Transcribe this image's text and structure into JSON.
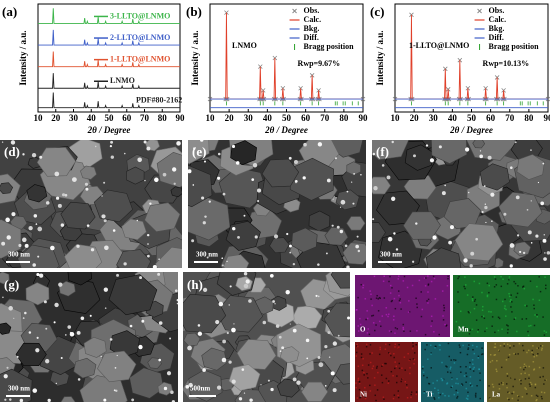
{
  "chart_data": [
    {
      "type": "line",
      "panel_label": "(a)",
      "xlabel": "2θ / Degree",
      "ylabel": "Intensity / a.u.",
      "x": [
        10,
        18.2,
        18.6,
        19,
        35.9,
        36.3,
        36.7,
        37.4,
        37.8,
        38.2,
        43.5,
        43.9,
        44.3,
        47.7,
        48.1,
        48.5,
        57,
        57.4,
        57.8,
        63,
        63.4,
        63.8,
        66.4,
        66.8,
        67.2,
        90
      ],
      "xlim": [
        10,
        90
      ],
      "xticks": [
        10,
        20,
        30,
        40,
        50,
        60,
        70,
        80,
        90
      ],
      "ylim": [
        0,
        100
      ],
      "legend": "inline",
      "series": [
        {
          "name": "3-LLTO@LNMO",
          "color": "#3cb54a",
          "values": [
            82,
            82,
            96,
            82,
            82,
            87,
            82,
            82,
            84,
            82,
            82,
            88,
            82,
            82,
            84,
            82,
            82,
            84,
            82,
            82,
            86,
            82,
            82,
            84,
            82,
            82
          ]
        },
        {
          "name": "2-LLTO@LNMO",
          "color": "#3f5fc8",
          "values": [
            62,
            62,
            76,
            62,
            62,
            67,
            62,
            62,
            64,
            62,
            62,
            68,
            62,
            62,
            64,
            62,
            62,
            64,
            62,
            62,
            66,
            62,
            62,
            64,
            62,
            62
          ]
        },
        {
          "name": "1-LLTO@LNMO",
          "color": "#e0522f",
          "values": [
            42,
            42,
            56,
            42,
            42,
            47,
            42,
            42,
            44,
            42,
            42,
            48,
            42,
            42,
            44,
            42,
            42,
            44,
            42,
            42,
            46,
            42,
            42,
            44,
            42,
            42
          ]
        },
        {
          "name": "LNMO",
          "color": "#222222",
          "values": [
            22,
            22,
            36,
            22,
            22,
            27,
            22,
            22,
            24,
            22,
            22,
            28,
            22,
            22,
            24,
            22,
            22,
            24,
            22,
            22,
            26,
            22,
            22,
            24,
            22,
            22
          ]
        },
        {
          "name": "PDF#80-2162",
          "color": "#222222",
          "values": [
            4,
            4,
            18,
            4,
            4,
            9,
            4,
            4,
            6,
            4,
            4,
            10,
            4,
            4,
            6,
            4,
            4,
            6,
            4,
            4,
            8,
            4,
            4,
            6,
            4,
            4
          ]
        }
      ]
    },
    {
      "type": "line",
      "panel_label": "(b)",
      "xlabel": "2θ / Degree",
      "ylabel": "Intensity / a.u.",
      "annotation": "LNMO",
      "rwp": "Rwp=9.67%",
      "x": [
        10,
        18.2,
        18.6,
        19,
        35.9,
        36.3,
        36.7,
        37.4,
        37.8,
        38.2,
        43.5,
        43.9,
        44.3,
        47.7,
        48.1,
        48.5,
        57,
        57.4,
        57.8,
        63,
        63.4,
        63.8,
        66.4,
        66.8,
        67.2,
        90
      ],
      "xlim": [
        10,
        90
      ],
      "xticks": [
        10,
        20,
        30,
        40,
        50,
        60,
        70,
        80,
        90
      ],
      "ylim": [
        0,
        100
      ],
      "legend": "upper right",
      "series": [
        {
          "name": "Obs.",
          "color": "#888888",
          "marker": "x",
          "values": [
            12,
            12,
            92,
            12,
            12,
            42,
            12,
            12,
            20,
            12,
            12,
            50,
            12,
            12,
            22,
            12,
            12,
            22,
            12,
            12,
            34,
            12,
            12,
            20,
            12,
            12
          ]
        },
        {
          "name": "Calc.",
          "color": "#e0402a",
          "values": [
            12,
            12,
            92,
            12,
            12,
            42,
            12,
            12,
            20,
            12,
            12,
            50,
            12,
            12,
            22,
            12,
            12,
            22,
            12,
            12,
            34,
            12,
            12,
            20,
            12,
            12
          ]
        },
        {
          "name": "Bkg.",
          "color": "#3f5fc8",
          "values": [
            12,
            12,
            12,
            12,
            12,
            12,
            12,
            12,
            12,
            12,
            12,
            12,
            12,
            12,
            12,
            12,
            12,
            12,
            12,
            12,
            12,
            12,
            12,
            12,
            12,
            12
          ]
        },
        {
          "name": "Diff.",
          "color": "#3f5fc8",
          "values": [
            4,
            4,
            4,
            4,
            4,
            4,
            4,
            4,
            4,
            4,
            4,
            4,
            4,
            4,
            4,
            4,
            4,
            4,
            4,
            4,
            4,
            4,
            4,
            4,
            4,
            4
          ]
        }
      ],
      "bragg": {
        "name": "Bragg position",
        "color": "#2ca02c",
        "positions": [
          18.6,
          36.3,
          37.8,
          43.9,
          48.1,
          57.4,
          63.4,
          66.8,
          75.5,
          76.5,
          79.6,
          80.7,
          84.4,
          87.5
        ]
      }
    },
    {
      "type": "line",
      "panel_label": "(c)",
      "xlabel": "2θ / Degree",
      "ylabel": "Intensity / a.u.",
      "annotation": "1-LLTO@LNMO",
      "rwp": "Rwp=10.13%",
      "x": [
        10,
        18.2,
        18.6,
        19,
        35.9,
        36.3,
        36.7,
        37.4,
        37.8,
        38.2,
        43.5,
        43.9,
        44.3,
        47.7,
        48.1,
        48.5,
        57,
        57.4,
        57.8,
        63,
        63.4,
        63.8,
        66.4,
        66.8,
        67.2,
        90
      ],
      "xlim": [
        10,
        90
      ],
      "xticks": [
        10,
        20,
        30,
        40,
        50,
        60,
        70,
        80,
        90
      ],
      "ylim": [
        0,
        100
      ],
      "legend": "upper right",
      "series": [
        {
          "name": "Obs.",
          "color": "#888888",
          "marker": "x",
          "values": [
            12,
            12,
            90,
            12,
            12,
            40,
            12,
            12,
            21,
            12,
            12,
            48,
            12,
            12,
            22,
            12,
            12,
            22,
            12,
            12,
            32,
            12,
            12,
            20,
            12,
            12
          ]
        },
        {
          "name": "Calc.",
          "color": "#e0402a",
          "values": [
            12,
            12,
            90,
            12,
            12,
            40,
            12,
            12,
            21,
            12,
            12,
            48,
            12,
            12,
            22,
            12,
            12,
            22,
            12,
            12,
            32,
            12,
            12,
            20,
            12,
            12
          ]
        },
        {
          "name": "Bkg.",
          "color": "#3f5fc8",
          "values": [
            12,
            12,
            12,
            12,
            12,
            12,
            12,
            12,
            12,
            12,
            12,
            12,
            12,
            12,
            12,
            12,
            12,
            12,
            12,
            12,
            12,
            12,
            12,
            12,
            12,
            12
          ]
        },
        {
          "name": "Diff.",
          "color": "#3f5fc8",
          "values": [
            4,
            4,
            4,
            4,
            4,
            4,
            4,
            4,
            4,
            4,
            4,
            4,
            4,
            4,
            4,
            4,
            4,
            4,
            4,
            4,
            4,
            4,
            4,
            4,
            4,
            4
          ]
        }
      ],
      "bragg": {
        "name": "Bragg position",
        "color": "#2ca02c",
        "positions": [
          18.6,
          36.3,
          37.8,
          43.9,
          48.1,
          57.4,
          63.4,
          66.8,
          75.5,
          76.5,
          79.6,
          80.7,
          84.4,
          87.5
        ]
      }
    }
  ],
  "sem_panels": [
    {
      "panel_label": "(d)",
      "scale_bar": "300 nm"
    },
    {
      "panel_label": "(e)",
      "scale_bar": "300 nm"
    },
    {
      "panel_label": "(f)",
      "scale_bar": "300 nm"
    },
    {
      "panel_label": "(g)",
      "scale_bar": "300 nm"
    },
    {
      "panel_label": "(h)",
      "scale_bar": "500nm"
    }
  ],
  "eds_maps": [
    "O",
    "Mn",
    "Ni",
    "Ti",
    "La"
  ]
}
